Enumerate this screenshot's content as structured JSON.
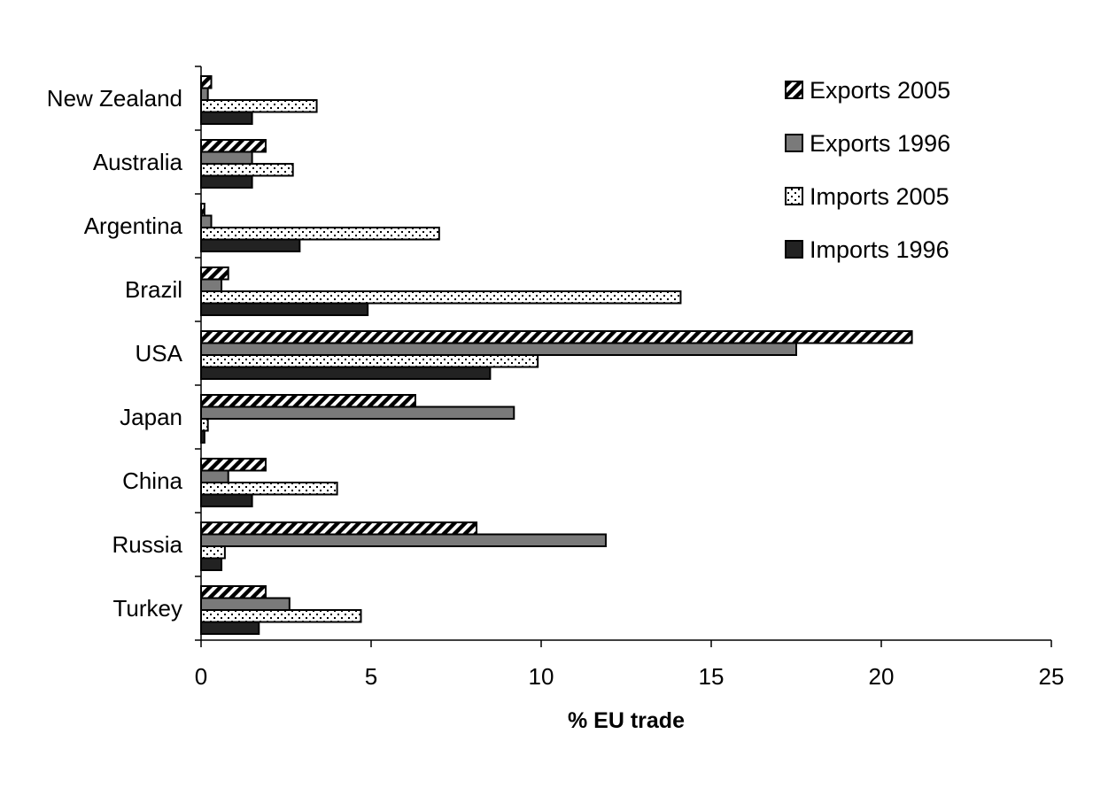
{
  "chart_data": {
    "type": "bar",
    "orientation": "horizontal",
    "title": "",
    "xlabel": "% EU trade",
    "ylabel": "",
    "xlim": [
      0,
      25
    ],
    "xticks": [
      0,
      5,
      10,
      15,
      20,
      25
    ],
    "grid": false,
    "legend_position": "top-right",
    "categories": [
      "New Zealand",
      "Australia",
      "Argentina",
      "Brazil",
      "USA",
      "Japan",
      "China",
      "Russia",
      "Turkey"
    ],
    "series": [
      {
        "name": "Exports 2005",
        "pattern": "diagonal-hatch",
        "color": "#ffffff",
        "values": [
          0.3,
          1.9,
          0.1,
          0.8,
          20.9,
          6.3,
          1.9,
          8.1,
          1.9
        ]
      },
      {
        "name": "Exports 1996",
        "pattern": "solid",
        "color": "#7a7a7a",
        "values": [
          0.2,
          1.5,
          0.3,
          0.6,
          17.5,
          9.2,
          0.8,
          11.9,
          2.6
        ]
      },
      {
        "name": "Imports 2005",
        "pattern": "dots",
        "color": "#ffffff",
        "values": [
          3.4,
          2.7,
          7.0,
          14.1,
          9.9,
          0.2,
          4.0,
          0.7,
          4.7
        ]
      },
      {
        "name": "Imports 1996",
        "pattern": "solid",
        "color": "#222222",
        "values": [
          1.5,
          1.5,
          2.9,
          4.9,
          8.5,
          0.1,
          1.5,
          0.6,
          1.7
        ]
      }
    ]
  }
}
